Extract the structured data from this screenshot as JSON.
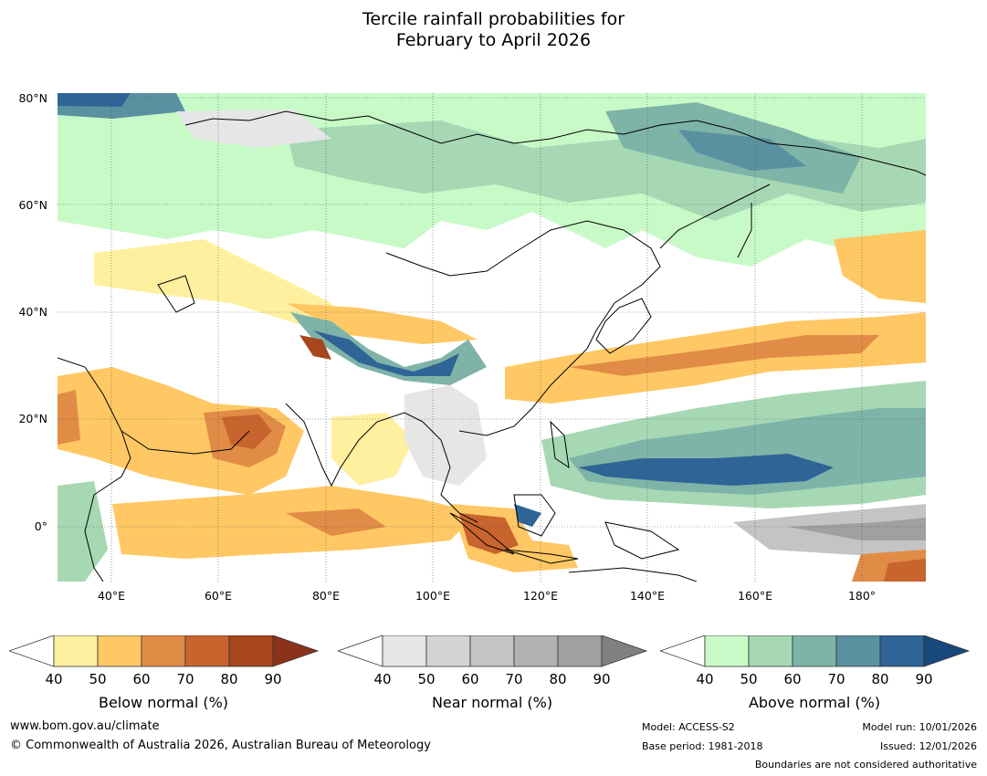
{
  "title": {
    "line1": "Tercile rainfall probabilities for",
    "line2": "February to April 2026"
  },
  "map_axes": {
    "lat_labels": [
      "80°N",
      "60°N",
      "40°N",
      "20°N",
      "0°"
    ],
    "lon_labels": [
      "40°E",
      "60°E",
      "80°E",
      "100°E",
      "120°E",
      "140°E",
      "160°E",
      "180°"
    ]
  },
  "colorbars": {
    "below": {
      "label": "Below normal (%)",
      "ticks": [
        "40",
        "50",
        "60",
        "70",
        "80",
        "90"
      ],
      "colors": [
        "#ffffff",
        "#fff0a0",
        "#ffc864",
        "#e18c46",
        "#c8642d",
        "#a8461e",
        "#8c321a"
      ]
    },
    "near": {
      "label": "Near normal (%)",
      "ticks": [
        "40",
        "50",
        "60",
        "70",
        "80",
        "90"
      ],
      "colors": [
        "#ffffff",
        "#e6e6e6",
        "#d4d4d4",
        "#c4c4c4",
        "#b2b2b2",
        "#a0a0a0",
        "#808080"
      ]
    },
    "above": {
      "label": "Above normal (%)",
      "ticks": [
        "40",
        "50",
        "60",
        "70",
        "80",
        "90"
      ],
      "colors": [
        "#ffffff",
        "#c8fac8",
        "#a6d8b4",
        "#7eb4a8",
        "#5a91a0",
        "#2f6496",
        "#19487e"
      ]
    }
  },
  "footer": {
    "website": "www.bom.gov.au/climate",
    "copyright": "© Commonwealth of Australia 2026, Australian Bureau of Meteorology",
    "model": "Model: ACCESS-S2",
    "base_period": "Base period: 1981-2018",
    "model_run": "Model run: 10/01/2026",
    "issued": "Issued: 12/01/2026",
    "boundaries": "Boundaries are not considered authoritative"
  }
}
